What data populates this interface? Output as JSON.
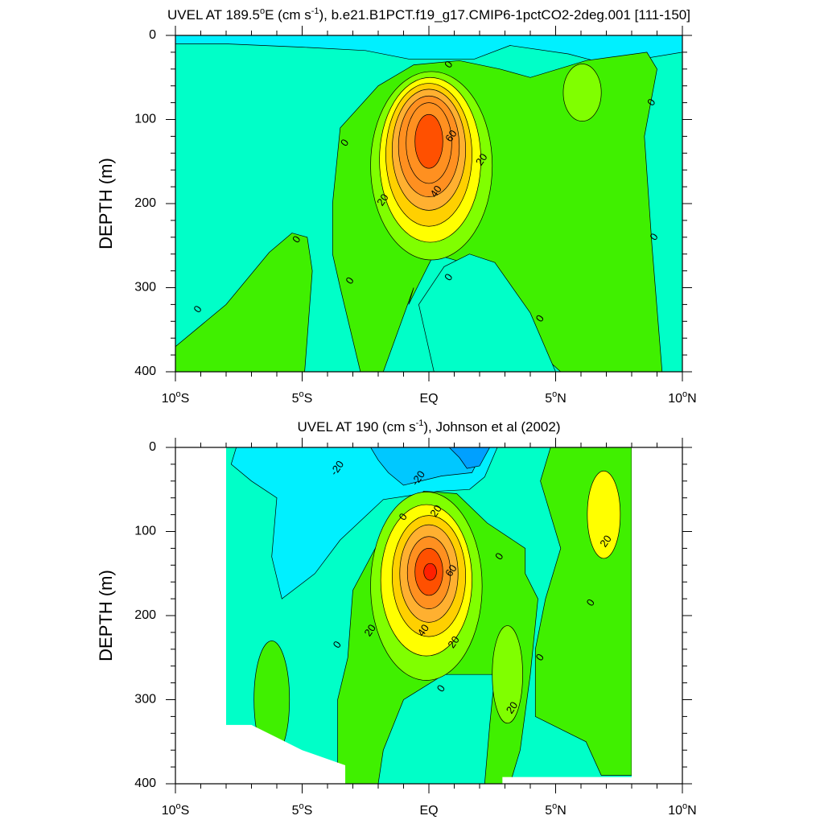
{
  "chart_data": [
    {
      "type": "contour",
      "title": "UVEL AT 189.5ºE (cm s-1), b.e21.B1PCT.f19_g17.CMIP6-1pctCO2-2deg.001 [111-150]",
      "title_parts": {
        "pre": "UVEL AT 189.5",
        "sup1": "o",
        "mid": "E (cm s",
        "sup2": "-1",
        "post": "), b.e21.B1PCT.f19_g17.CMIP6-1pctCO2-2deg.001 [111-150]"
      },
      "ylabel": "DEPTH (m)",
      "xlim": [
        -10,
        10
      ],
      "ylim": [
        0,
        400
      ],
      "x_ticks": [
        {
          "value": -10,
          "num": "10",
          "sup": "o",
          "suffix": "S"
        },
        {
          "value": -5,
          "num": "5",
          "sup": "o",
          "suffix": "S"
        },
        {
          "value": 0,
          "num": "EQ",
          "sup": "",
          "suffix": ""
        },
        {
          "value": 5,
          "num": "5",
          "sup": "o",
          "suffix": "N"
        },
        {
          "value": 10,
          "num": "10",
          "sup": "o",
          "suffix": "N"
        }
      ],
      "y_ticks": [
        0,
        100,
        200,
        300,
        400
      ],
      "contour_interval": 10,
      "core": {
        "lat": 0.0,
        "depth": 125,
        "max_speed": 75
      },
      "contour_labels": [
        {
          "text": "0",
          "lat": 0.8,
          "depth": 35
        },
        {
          "text": "0",
          "lat": 8.8,
          "depth": 80
        },
        {
          "text": "0",
          "lat": -3.3,
          "depth": 128
        },
        {
          "text": "60",
          "lat": 0.9,
          "depth": 120
        },
        {
          "text": "20",
          "lat": 2.1,
          "depth": 148
        },
        {
          "text": "40",
          "lat": 0.3,
          "depth": 186
        },
        {
          "text": "20",
          "lat": -1.8,
          "depth": 196
        },
        {
          "text": "0",
          "lat": -5.2,
          "depth": 243
        },
        {
          "text": "0",
          "lat": 8.9,
          "depth": 240
        },
        {
          "text": "0",
          "lat": -3.1,
          "depth": 292
        },
        {
          "text": "0",
          "lat": 0.8,
          "depth": 288
        },
        {
          "text": "0",
          "lat": -9.1,
          "depth": 326
        },
        {
          "text": "0",
          "lat": 4.4,
          "depth": 337
        }
      ]
    },
    {
      "type": "contour",
      "title": "UVEL AT 190 (cm s-1), Johnson et al (2002)",
      "title_parts": {
        "pre": "UVEL AT 190 (cm s",
        "sup2": "-1",
        "post": "), Johnson et al (2002)"
      },
      "ylabel": "DEPTH (m)",
      "xlim": [
        -10,
        10
      ],
      "ylim": [
        0,
        400
      ],
      "x_ticks": [
        {
          "value": -10,
          "num": "10",
          "sup": "o",
          "suffix": "S"
        },
        {
          "value": -5,
          "num": "5",
          "sup": "o",
          "suffix": "S"
        },
        {
          "value": 0,
          "num": "EQ",
          "sup": "",
          "suffix": ""
        },
        {
          "value": 5,
          "num": "5",
          "sup": "o",
          "suffix": "N"
        },
        {
          "value": 10,
          "num": "10",
          "sup": "o",
          "suffix": "N"
        }
      ],
      "y_ticks": [
        0,
        100,
        200,
        300,
        400
      ],
      "data_range_lat": [
        -8,
        8
      ],
      "contour_interval": 10,
      "core": {
        "lat": 0.0,
        "depth": 148,
        "max_speed": 85
      },
      "contour_labels": [
        {
          "text": "-20",
          "lat": -3.6,
          "depth": 25
        },
        {
          "text": "-20",
          "lat": -0.4,
          "depth": 37
        },
        {
          "text": "20",
          "lat": 0.3,
          "depth": 76
        },
        {
          "text": "0",
          "lat": -1.0,
          "depth": 83
        },
        {
          "text": "20",
          "lat": 7.0,
          "depth": 112
        },
        {
          "text": "0",
          "lat": 2.8,
          "depth": 130
        },
        {
          "text": "60",
          "lat": 0.9,
          "depth": 147
        },
        {
          "text": "0",
          "lat": 6.4,
          "depth": 185
        },
        {
          "text": "20",
          "lat": -2.3,
          "depth": 218
        },
        {
          "text": "40",
          "lat": -0.2,
          "depth": 218
        },
        {
          "text": "20",
          "lat": 1.0,
          "depth": 232
        },
        {
          "text": "0",
          "lat": -3.6,
          "depth": 235
        },
        {
          "text": "0",
          "lat": 4.4,
          "depth": 250
        },
        {
          "text": "0",
          "lat": 0.5,
          "depth": 287
        },
        {
          "text": "20",
          "lat": 3.3,
          "depth": 310
        }
      ]
    }
  ],
  "colors": {
    "band_neg30": "#00a0ff",
    "band_neg20": "#00c8ff",
    "band_neg10": "#00f0ff",
    "band_0": "#00ffc8",
    "band_10": "#40f000",
    "band_20": "#80ff00",
    "band_30": "#ffff00",
    "band_40": "#ffd000",
    "band_50": "#ffb030",
    "band_60": "#ff9020",
    "band_70": "#ff5000",
    "band_80": "#ff2000",
    "band_90": "#dc0000"
  }
}
